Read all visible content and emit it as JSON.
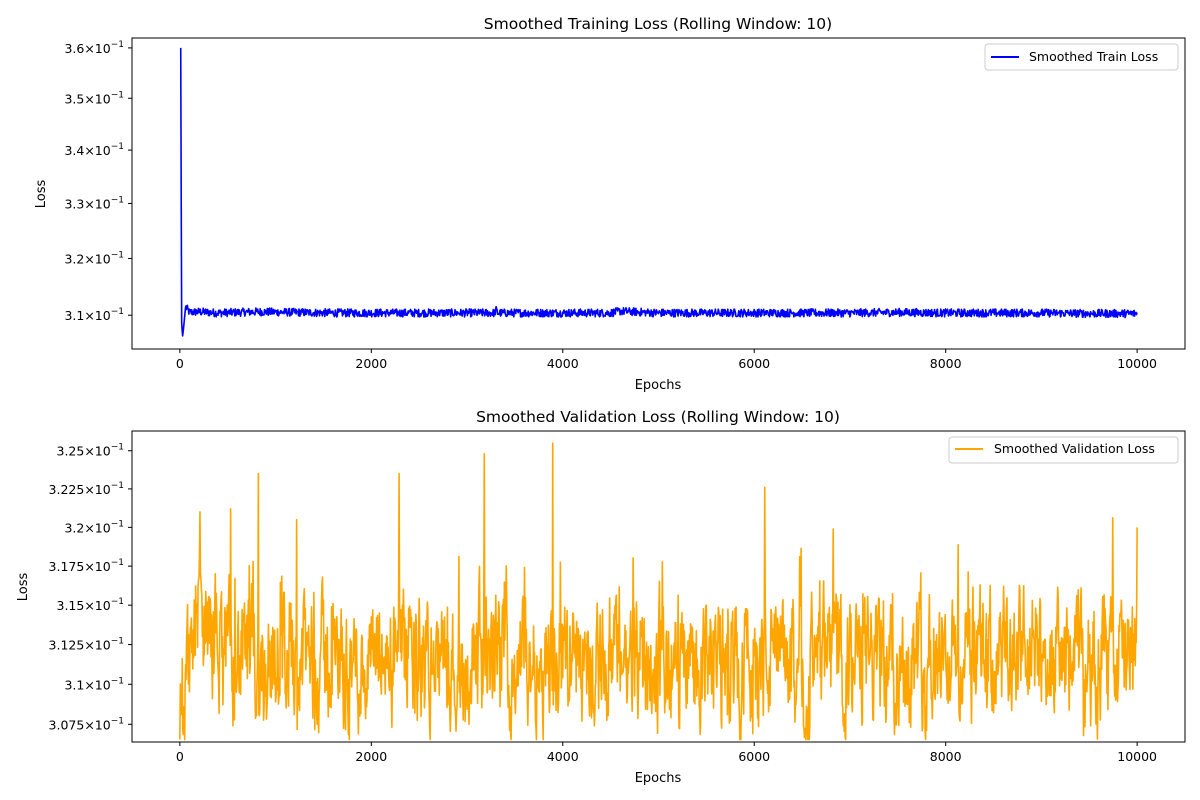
{
  "chart_data": [
    {
      "type": "line",
      "title": "Smoothed Training Loss (Rolling Window: 10)",
      "xlabel": "Epochs",
      "ylabel": "Loss",
      "yscale": "log",
      "xlim": [
        -500,
        10500
      ],
      "ylim": [
        0.3042,
        0.362
      ],
      "x_ticks": [
        0,
        2000,
        4000,
        6000,
        8000,
        10000
      ],
      "x_tick_labels": [
        "0",
        "2000",
        "4000",
        "6000",
        "8000",
        "10000"
      ],
      "y_ticks": [
        0.31,
        0.32,
        0.33,
        0.34,
        0.35,
        0.36
      ],
      "y_tick_mantissa": [
        "3.1",
        "3.2",
        "3.3",
        "3.4",
        "3.5",
        "3.6"
      ],
      "y_tick_base": "10",
      "y_tick_exponent": "−1",
      "grid": false,
      "legend_position": "top-right",
      "series": [
        {
          "name": "Smoothed Train Loss",
          "color": "#0000ff",
          "x": [
            9,
            18,
            28,
            40,
            60,
            100,
            200,
            400,
            800,
            1200,
            1600,
            2000,
            2500,
            3000,
            3290,
            3300,
            3320,
            3600,
            4000,
            4500,
            4600,
            5000,
            5500,
            6000,
            6500,
            7000,
            7500,
            8000,
            8500,
            9000,
            9500,
            10000
          ],
          "y": [
            0.36,
            0.309,
            0.3063,
            0.308,
            0.3115,
            0.3105,
            0.3106,
            0.3104,
            0.3106,
            0.3105,
            0.3104,
            0.3104,
            0.3104,
            0.3104,
            0.3104,
            0.311,
            0.3104,
            0.3104,
            0.3104,
            0.3104,
            0.3107,
            0.3104,
            0.3104,
            0.3104,
            0.3104,
            0.3104,
            0.3105,
            0.3104,
            0.3104,
            0.3104,
            0.3103,
            0.3103
          ],
          "noise_amplitude": 0.0007
        }
      ]
    },
    {
      "type": "line",
      "title": "Smoothed Validation Loss (Rolling Window: 10)",
      "xlabel": "Epochs",
      "ylabel": "Loss",
      "yscale": "log",
      "xlim": [
        -500,
        10500
      ],
      "ylim": [
        0.3064,
        0.3263
      ],
      "x_ticks": [
        0,
        2000,
        4000,
        6000,
        8000,
        10000
      ],
      "x_tick_labels": [
        "0",
        "2000",
        "4000",
        "6000",
        "8000",
        "10000"
      ],
      "y_ticks": [
        0.3075,
        0.31,
        0.3125,
        0.315,
        0.3175,
        0.32,
        0.3225,
        0.325
      ],
      "y_tick_mantissa": [
        "3.075",
        "3.1",
        "3.125",
        "3.15",
        "3.175",
        "3.2",
        "3.225",
        "3.25"
      ],
      "y_tick_base": "10",
      "y_tick_exponent": "−1",
      "grid": false,
      "legend_position": "top-right",
      "series": [
        {
          "name": "Smoothed Validation Loss",
          "color": "#ffa500",
          "x": [
            0,
            200,
            500,
            800,
            1200,
            1600,
            2000,
            2300,
            2600,
            3000,
            3200,
            3500,
            3900,
            4300,
            4800,
            5200,
            5600,
            6100,
            6500,
            7000,
            7500,
            7900,
            8400,
            8800,
            9200,
            9600,
            10000
          ],
          "y": [
            0.3095,
            0.314,
            0.3118,
            0.3115,
            0.3118,
            0.3113,
            0.3112,
            0.3118,
            0.3112,
            0.3113,
            0.312,
            0.3115,
            0.3118,
            0.3118,
            0.3112,
            0.3113,
            0.3113,
            0.3115,
            0.3113,
            0.3113,
            0.3116,
            0.3115,
            0.3116,
            0.3117,
            0.3117,
            0.3113,
            0.3115
          ],
          "peaks": [
            [
              30,
              0.3072
            ],
            [
              210,
              0.321
            ],
            [
              530,
              0.3212
            ],
            [
              820,
              0.3235
            ],
            [
              1220,
              0.3205
            ],
            [
              2290,
              0.3235
            ],
            [
              3180,
              0.3248
            ],
            [
              3895,
              0.3255
            ],
            [
              6110,
              0.3226
            ],
            [
              9440,
              0.3068
            ],
            [
              10000,
              0.32
            ]
          ],
          "noise_amplitude": 0.0032
        }
      ]
    }
  ]
}
